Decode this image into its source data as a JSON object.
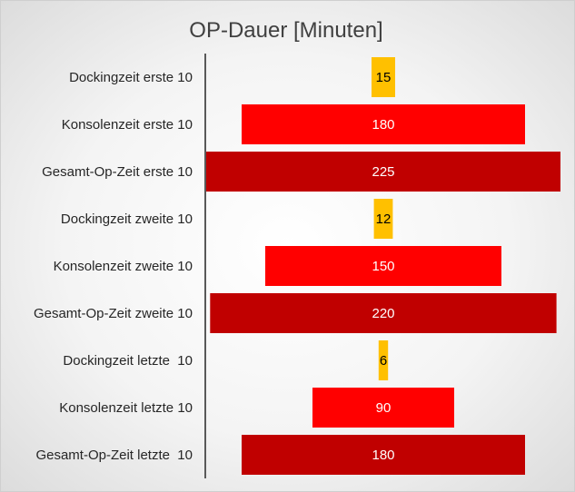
{
  "chart_data": {
    "type": "bar",
    "orientation": "horizontal",
    "layout": "centered-funnel",
    "title": "OP-Dauer [Minuten]",
    "xlabel": "",
    "ylabel": "",
    "xlim": [
      0,
      225
    ],
    "grid": false,
    "legend": "none",
    "categories": [
      "Dockingzeit erste 10",
      "Konsolenzeit erste 10",
      "Gesamt-Op-Zeit erste 10",
      "Dockingzeit zweite 10",
      "Konsolenzeit zweite 10",
      "Gesamt-Op-Zeit zweite 10",
      "Dockingzeit letzte  10",
      "Konsolenzeit letzte 10",
      "Gesamt-Op-Zeit letzte  10"
    ],
    "values": [
      15,
      180,
      225,
      12,
      150,
      220,
      6,
      90,
      180
    ],
    "value_labels": [
      "15",
      "180",
      "225",
      "12",
      "150",
      "220",
      "6",
      "90",
      "180"
    ],
    "colors": {
      "docking": "#FFC000",
      "konsole": "#FF0000",
      "gesamt": "#C00000",
      "label_light": "#FFFFFF",
      "label_dark": "#000000",
      "axis": "#595959"
    },
    "bar_color_keys": [
      "docking",
      "konsole",
      "gesamt",
      "docking",
      "konsole",
      "gesamt",
      "docking",
      "konsole",
      "gesamt"
    ],
    "label_color_keys": [
      "label_dark",
      "label_light",
      "label_light",
      "label_dark",
      "label_light",
      "label_light",
      "label_dark",
      "label_light",
      "label_light"
    ]
  }
}
